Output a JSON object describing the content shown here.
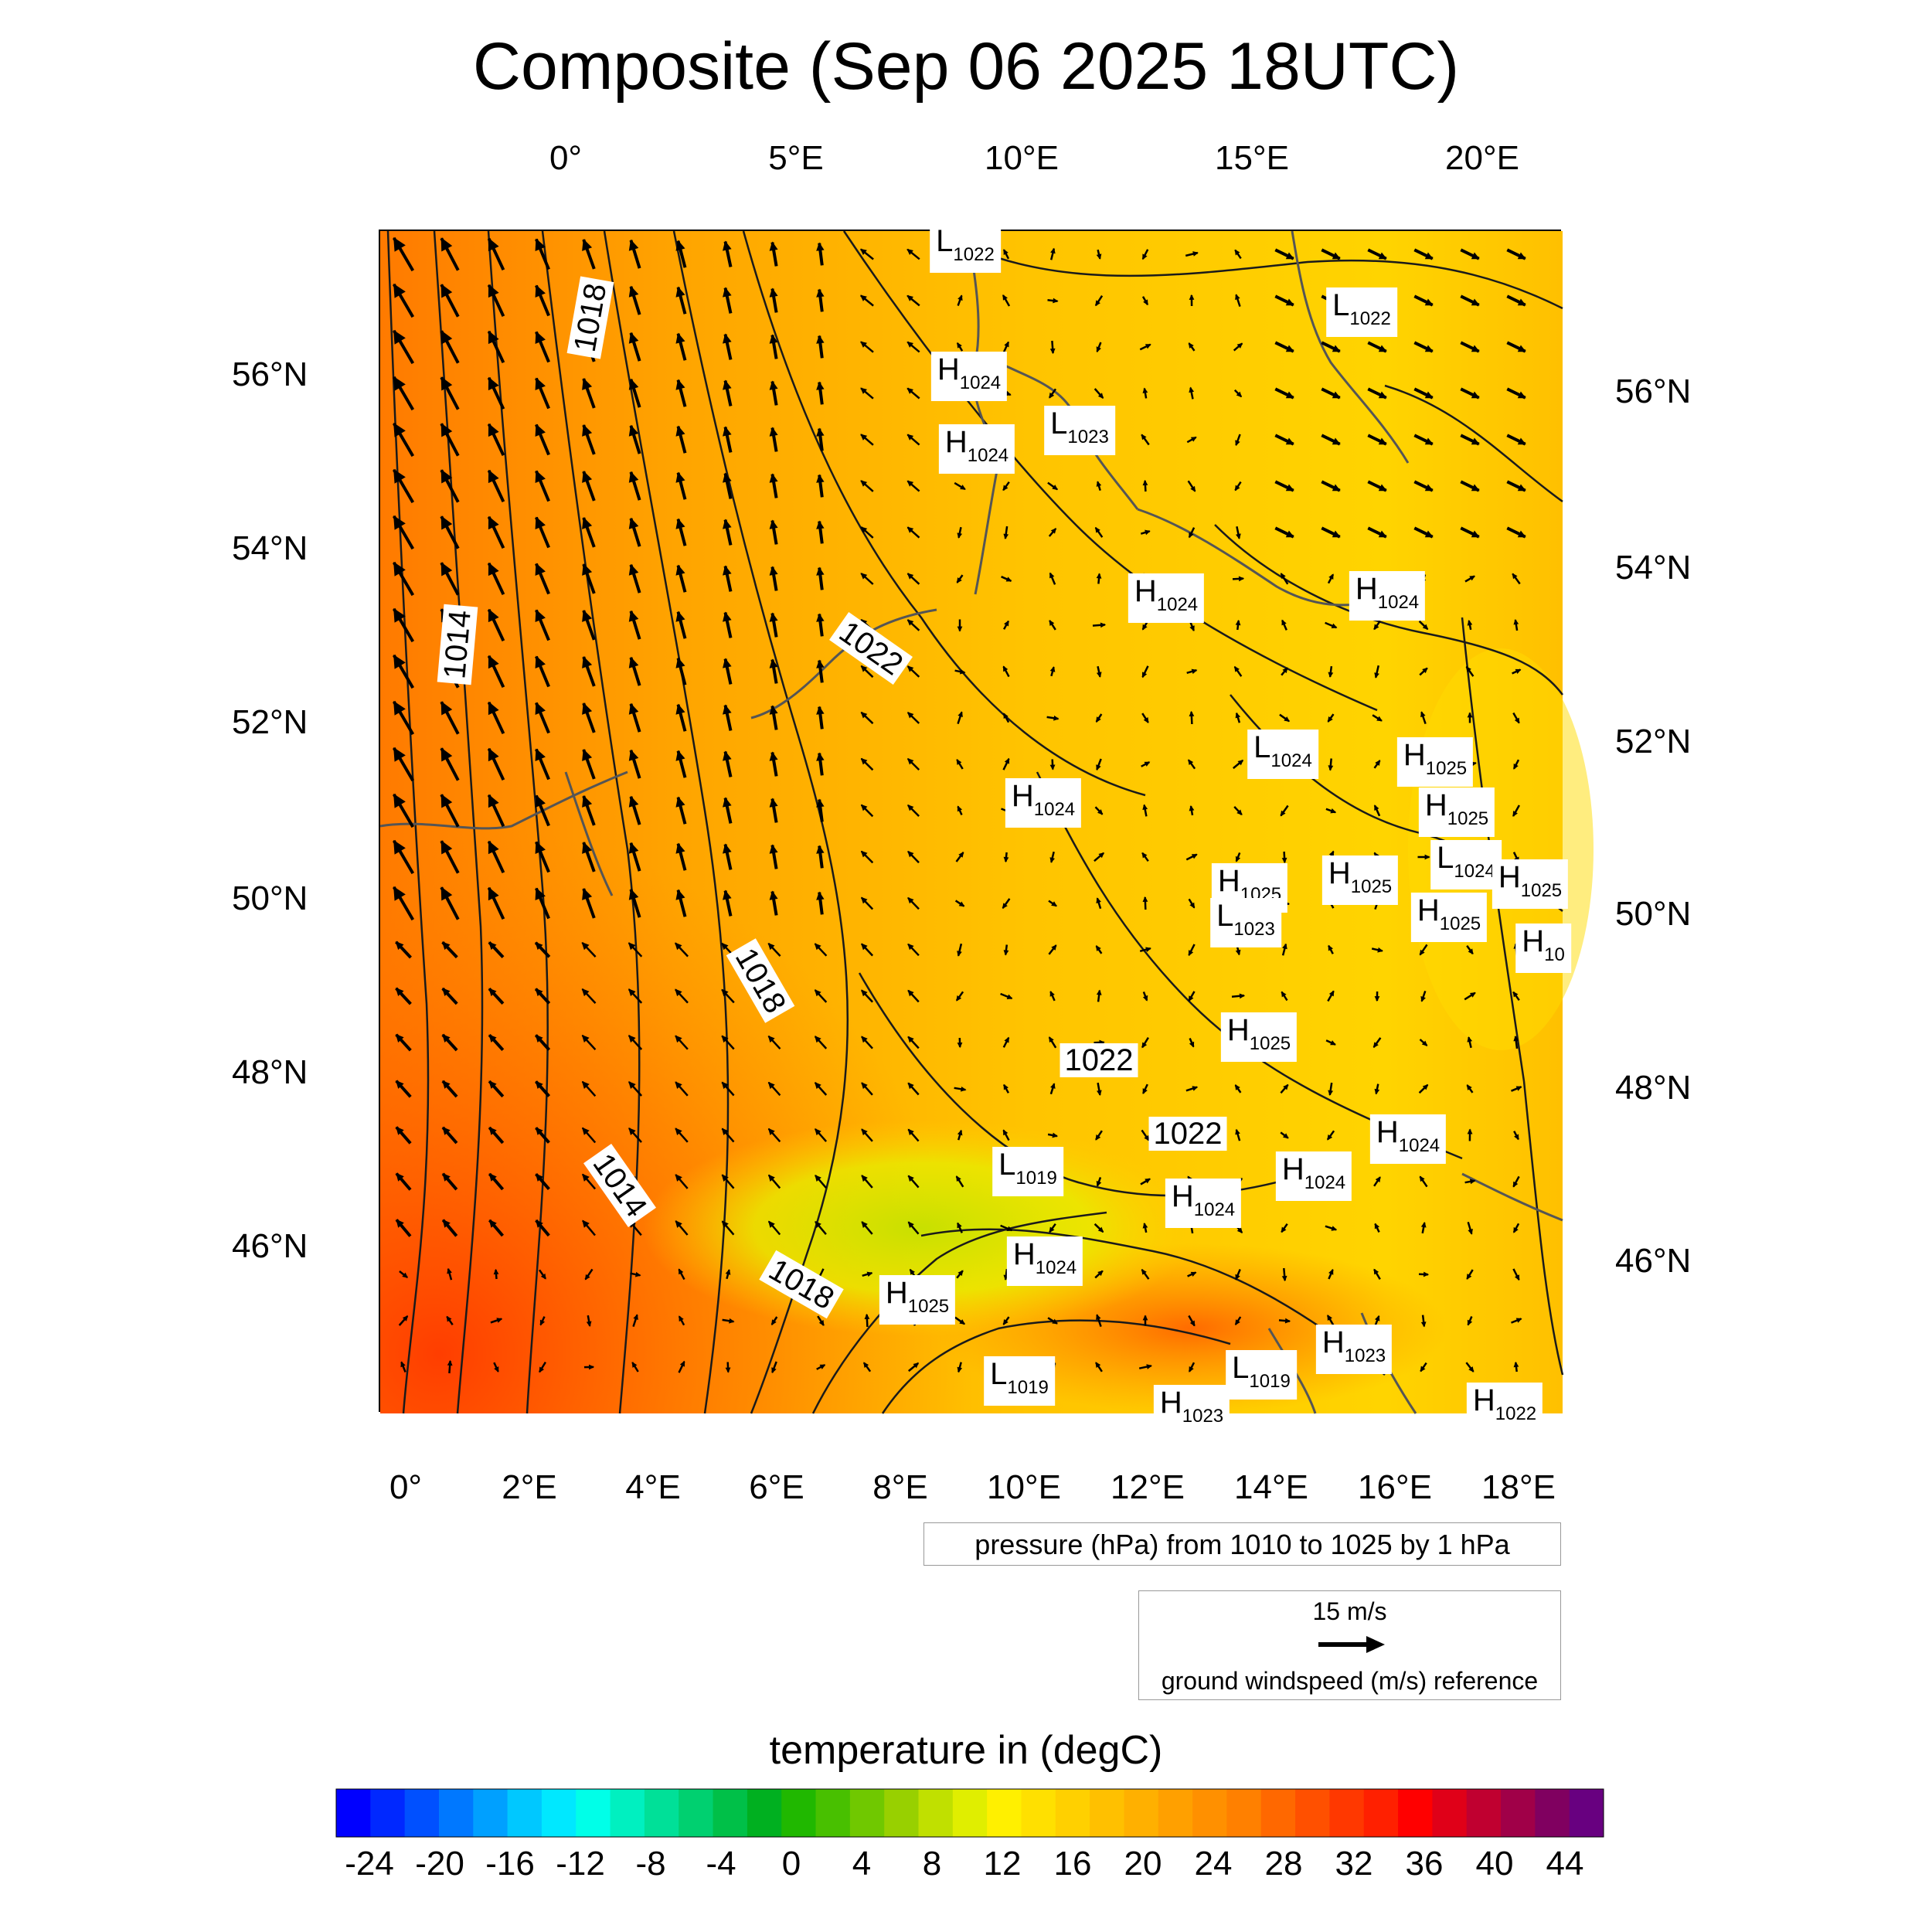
{
  "title": "Composite (Sep 06 2025 18UTC)",
  "top_lon_labels": [
    "0°",
    "5°E",
    "10°E",
    "15°E",
    "20°E"
  ],
  "bottom_lon_labels": [
    "0°",
    "2°E",
    "4°E",
    "6°E",
    "8°E",
    "10°E",
    "12°E",
    "14°E",
    "16°E",
    "18°E"
  ],
  "left_lat_labels": [
    "56°N",
    "54°N",
    "52°N",
    "50°N",
    "48°N",
    "46°N"
  ],
  "right_lat_labels": [
    "56°N",
    "54°N",
    "52°N",
    "50°N",
    "48°N",
    "46°N"
  ],
  "contour_labels": [
    "1018",
    "1022",
    "1014",
    "1018",
    "1022",
    "1022",
    "1014",
    "1018"
  ],
  "pressure_centers": [
    {
      "type": "L",
      "value": "1022"
    },
    {
      "type": "L",
      "value": "1022"
    },
    {
      "type": "H",
      "value": "1024"
    },
    {
      "type": "L",
      "value": "1023"
    },
    {
      "type": "H",
      "value": "1024"
    },
    {
      "type": "H",
      "value": "1024"
    },
    {
      "type": "H",
      "value": "1024"
    },
    {
      "type": "L",
      "value": "1024"
    },
    {
      "type": "H",
      "value": "1025"
    },
    {
      "type": "H",
      "value": "1024"
    },
    {
      "type": "H",
      "value": "1025"
    },
    {
      "type": "L",
      "value": "1024"
    },
    {
      "type": "H",
      "value": "1025"
    },
    {
      "type": "H",
      "value": "1025"
    },
    {
      "type": "H",
      "value": "1025"
    },
    {
      "type": "L",
      "value": "1023"
    },
    {
      "type": "H",
      "value": "1025"
    },
    {
      "type": "H",
      "value": "10"
    },
    {
      "type": "H",
      "value": "1025"
    },
    {
      "type": "H",
      "value": "1024"
    },
    {
      "type": "L",
      "value": "1019"
    },
    {
      "type": "H",
      "value": "1024"
    },
    {
      "type": "H",
      "value": "1024"
    },
    {
      "type": "H",
      "value": "1024"
    },
    {
      "type": "H",
      "value": "1025"
    },
    {
      "type": "H",
      "value": "1023"
    },
    {
      "type": "L",
      "value": "1019"
    },
    {
      "type": "L",
      "value": "1019"
    },
    {
      "type": "H",
      "value": "1023"
    },
    {
      "type": "H",
      "value": "1022"
    }
  ],
  "pressure_legend": "pressure (hPa) from 1010 to 1025 by 1 hPa",
  "wind_reference": {
    "speed_label": "15 m/s",
    "label": "ground windspeed (m/s) reference"
  },
  "colorbar": {
    "title": "temperature in (degC)",
    "tick_labels": [
      "-24",
      "-20",
      "-16",
      "-12",
      "-8",
      "-4",
      "0",
      "4",
      "8",
      "12",
      "16",
      "20",
      "24",
      "28",
      "32",
      "36",
      "40",
      "44"
    ],
    "min": -26,
    "max": 46,
    "step": 2,
    "colors": [
      "#0000ff",
      "#0028ff",
      "#0050ff",
      "#0078ff",
      "#00a0ff",
      "#00c8ff",
      "#00e8ff",
      "#00ffe8",
      "#00f0c0",
      "#00e098",
      "#00d070",
      "#00c048",
      "#00b020",
      "#20b800",
      "#48c000",
      "#70c800",
      "#98d000",
      "#c0e000",
      "#e0ee00",
      "#fff000",
      "#ffe000",
      "#ffd000",
      "#ffc000",
      "#ffb000",
      "#ffa000",
      "#ff9000",
      "#ff8000",
      "#ff6800",
      "#ff5000",
      "#ff3800",
      "#ff2000",
      "#ff0000",
      "#e00018",
      "#c00030",
      "#a00048",
      "#800060",
      "#680080"
    ]
  }
}
